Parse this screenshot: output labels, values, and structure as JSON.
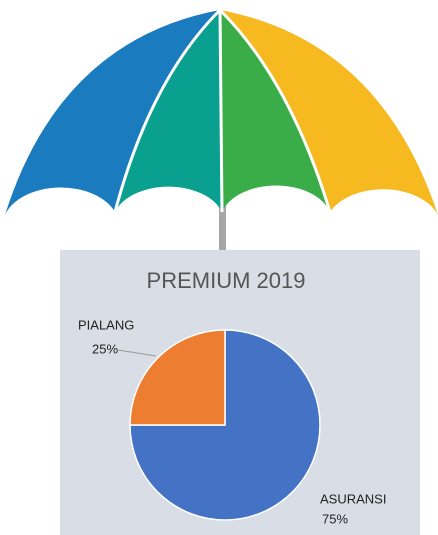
{
  "chart_data": {
    "type": "pie",
    "title": "PREMIUM 2019",
    "categories": [
      "ASURANSI",
      "PIALANG"
    ],
    "values": [
      75,
      25
    ],
    "value_labels": [
      "75%",
      "25%"
    ],
    "colors": [
      "#4472c4",
      "#ed7d31"
    ]
  }
}
